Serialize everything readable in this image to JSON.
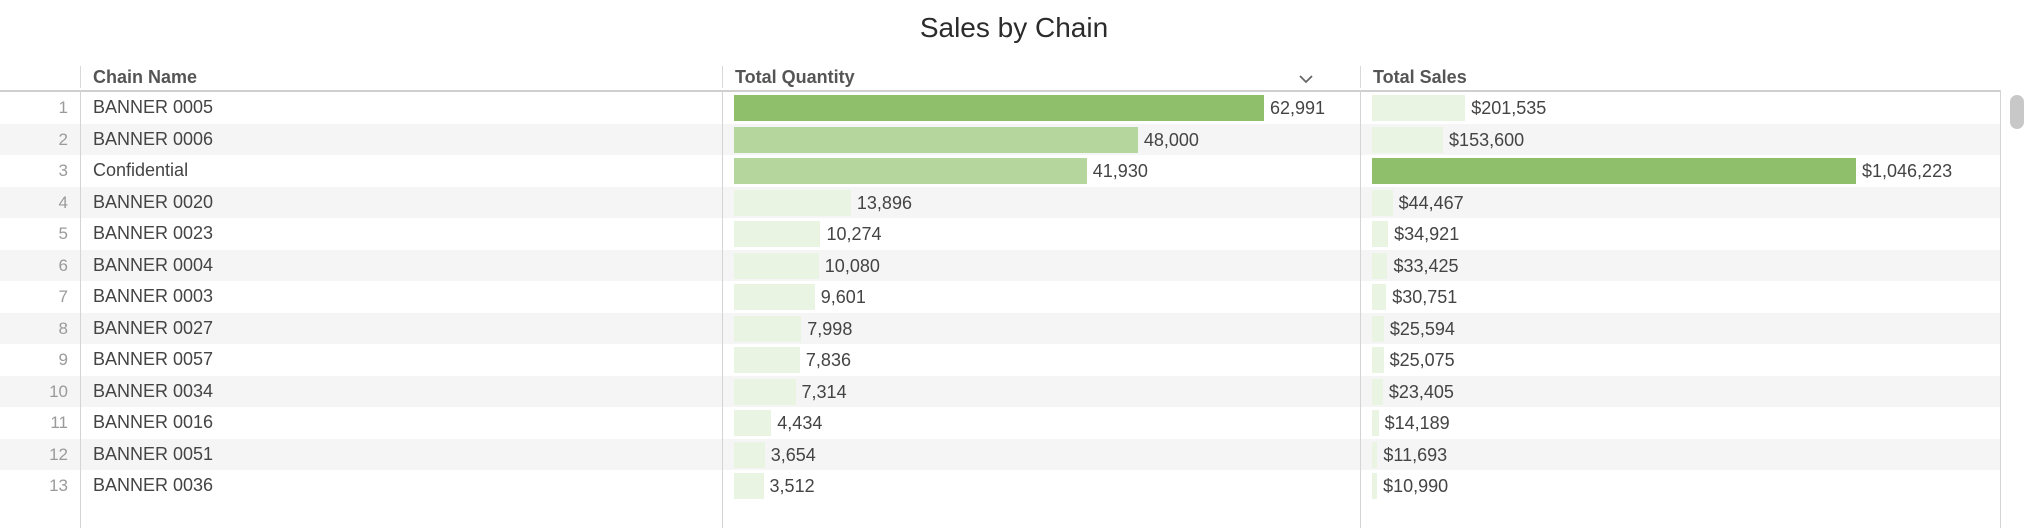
{
  "title": "Sales by Chain",
  "columns": {
    "chain_name": "Chain Name",
    "total_quantity": "Total Quantity",
    "total_sales": "Total Sales"
  },
  "icons": {
    "sort": "chevron-down-icon"
  },
  "colors": {
    "bar_strong": "#8fbf6b",
    "bar_mid": "#b5d69d",
    "bar_light": "#eaf4e2"
  },
  "max_quantity": 62991,
  "max_sales": 1046223,
  "rows": [
    {
      "num": "1",
      "name": "BANNER 0005",
      "quantity": 62991,
      "quantity_label": "62,991",
      "sales": 201535,
      "sales_label": "$201,535"
    },
    {
      "num": "2",
      "name": "BANNER 0006",
      "quantity": 48000,
      "quantity_label": "48,000",
      "sales": 153600,
      "sales_label": "$153,600"
    },
    {
      "num": "3",
      "name": "Confidential",
      "quantity": 41930,
      "quantity_label": "41,930",
      "sales": 1046223,
      "sales_label": "$1,046,223"
    },
    {
      "num": "4",
      "name": "BANNER 0020",
      "quantity": 13896,
      "quantity_label": "13,896",
      "sales": 44467,
      "sales_label": "$44,467"
    },
    {
      "num": "5",
      "name": "BANNER 0023",
      "quantity": 10274,
      "quantity_label": "10,274",
      "sales": 34921,
      "sales_label": "$34,921"
    },
    {
      "num": "6",
      "name": "BANNER 0004",
      "quantity": 10080,
      "quantity_label": "10,080",
      "sales": 33425,
      "sales_label": "$33,425"
    },
    {
      "num": "7",
      "name": "BANNER 0003",
      "quantity": 9601,
      "quantity_label": "9,601",
      "sales": 30751,
      "sales_label": "$30,751"
    },
    {
      "num": "8",
      "name": "BANNER 0027",
      "quantity": 7998,
      "quantity_label": "7,998",
      "sales": 25594,
      "sales_label": "$25,594"
    },
    {
      "num": "9",
      "name": "BANNER 0057",
      "quantity": 7836,
      "quantity_label": "7,836",
      "sales": 25075,
      "sales_label": "$25,075"
    },
    {
      "num": "10",
      "name": "BANNER 0034",
      "quantity": 7314,
      "quantity_label": "7,314",
      "sales": 23405,
      "sales_label": "$23,405"
    },
    {
      "num": "11",
      "name": "BANNER 0016",
      "quantity": 4434,
      "quantity_label": "4,434",
      "sales": 14189,
      "sales_label": "$14,189"
    },
    {
      "num": "12",
      "name": "BANNER 0051",
      "quantity": 3654,
      "quantity_label": "3,654",
      "sales": 11693,
      "sales_label": "$11,693"
    },
    {
      "num": "13",
      "name": "BANNER 0036",
      "quantity": 3512,
      "quantity_label": "3,512",
      "sales": 10990,
      "sales_label": "$10,990"
    }
  ]
}
